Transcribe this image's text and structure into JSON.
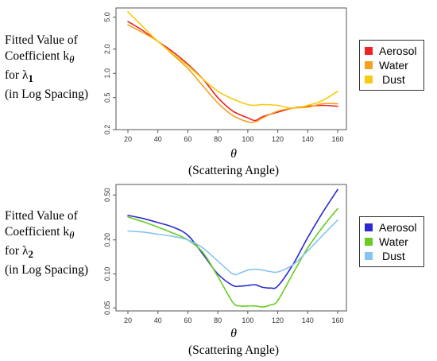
{
  "chart_data": [
    {
      "type": "line",
      "y_scale": "log",
      "ylabel_lines": [
        "Fitted Value of",
        "Coefficient k",
        "for  λ",
        "(in Log Spacing)"
      ],
      "ylabel_k_sub": "θ",
      "ylabel_lambda_sub": "1",
      "xlabel": "θ",
      "xlabel_sub": "(Scattering Angle)",
      "xlim": [
        20,
        160
      ],
      "ylim": [
        0.2,
        6.5
      ],
      "xticks": [
        "20",
        "40",
        "60",
        "80",
        "100",
        "120",
        "140",
        "160"
      ],
      "yticks": [
        {
          "value": 0.2,
          "label": "0.2"
        },
        {
          "value": 0.5,
          "label": "0.5"
        },
        {
          "value": 1.0,
          "label": "1.0"
        },
        {
          "value": 2.0,
          "label": "2.0"
        },
        {
          "value": 5.0,
          "label": "5.0"
        }
      ],
      "x": [
        20,
        30,
        40,
        50,
        60,
        70,
        80,
        90,
        100,
        105,
        110,
        120,
        130,
        140,
        150,
        160
      ],
      "series": [
        {
          "name": "Aerosol",
          "color": "#ee2222",
          "values": [
            4.4,
            3.4,
            2.5,
            1.85,
            1.3,
            0.85,
            0.5,
            0.34,
            0.28,
            0.26,
            0.29,
            0.33,
            0.37,
            0.39,
            0.4,
            0.39
          ]
        },
        {
          "name": "Water",
          "color": "#f5a020",
          "values": [
            4.0,
            3.2,
            2.5,
            1.7,
            1.15,
            0.7,
            0.43,
            0.3,
            0.25,
            0.25,
            0.28,
            0.34,
            0.37,
            0.38,
            0.42,
            0.42
          ]
        },
        {
          "name": "Dust",
          "color": "#f5cc10",
          "values": [
            5.8,
            3.8,
            2.5,
            1.75,
            1.25,
            0.85,
            0.6,
            0.48,
            0.41,
            0.4,
            0.41,
            0.4,
            0.37,
            0.4,
            0.46,
            0.6
          ]
        }
      ]
    },
    {
      "type": "line",
      "y_scale": "log",
      "ylabel_lines": [
        "Fitted Value of",
        "Coefficient k",
        "for  λ",
        "(in Log Spacing)"
      ],
      "ylabel_k_sub": "θ",
      "ylabel_lambda_sub": "2",
      "xlabel": "θ",
      "xlabel_sub": "(Scattering Angle)",
      "xlim": [
        20,
        160
      ],
      "ylim": [
        0.047,
        0.62
      ],
      "xticks": [
        "20",
        "40",
        "60",
        "80",
        "100",
        "120",
        "140",
        "160"
      ],
      "yticks": [
        {
          "value": 0.05,
          "label": "0.05"
        },
        {
          "value": 0.1,
          "label": "0.10"
        },
        {
          "value": 0.2,
          "label": "0.20"
        },
        {
          "value": 0.5,
          "label": "0.50"
        }
      ],
      "x": [
        20,
        30,
        40,
        50,
        60,
        70,
        80,
        90,
        95,
        100,
        105,
        110,
        115,
        120,
        130,
        140,
        150,
        160
      ],
      "series": [
        {
          "name": "Aerosol",
          "color": "#2a2ad0",
          "values": [
            0.33,
            0.31,
            0.285,
            0.26,
            0.22,
            0.15,
            0.1,
            0.079,
            0.078,
            0.079,
            0.08,
            0.076,
            0.075,
            0.078,
            0.12,
            0.21,
            0.35,
            0.56
          ]
        },
        {
          "name": "Water",
          "color": "#66cc22",
          "values": [
            0.32,
            0.29,
            0.26,
            0.23,
            0.2,
            0.155,
            0.095,
            0.056,
            0.052,
            0.052,
            0.052,
            0.051,
            0.053,
            0.058,
            0.1,
            0.17,
            0.26,
            0.38
          ]
        },
        {
          "name": "Dust",
          "color": "#88c4f0",
          "values": [
            0.24,
            0.235,
            0.225,
            0.215,
            0.2,
            0.17,
            0.13,
            0.1,
            0.102,
            0.108,
            0.11,
            0.108,
            0.105,
            0.104,
            0.12,
            0.16,
            0.22,
            0.3
          ]
        }
      ]
    }
  ]
}
